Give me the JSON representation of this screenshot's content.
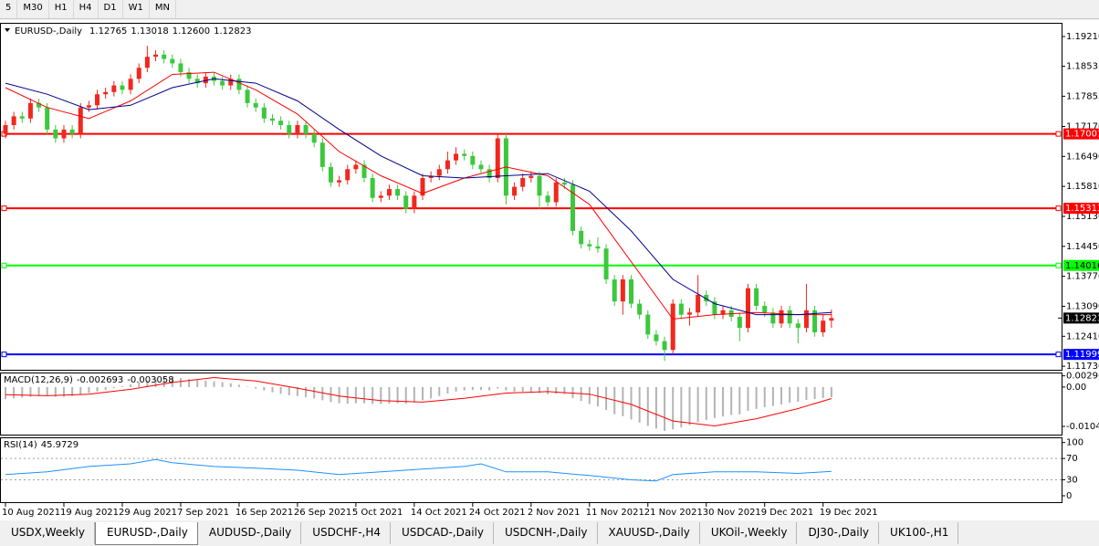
{
  "toolbar": [
    "5",
    "M30",
    "H1",
    "H4",
    "D1",
    "W1",
    "MN"
  ],
  "tabs": [
    "USDX,Weekly",
    "EURUSD-,Daily",
    "AUDUSD-,Daily",
    "USDCHF-,H4",
    "USDCAD-,Daily",
    "USDCNH-,Daily",
    "XAUUSD-,Daily",
    "UKOil-,Weekly",
    "DJ30-,Daily",
    "UK100-,H1"
  ],
  "active_tab": 1,
  "chart_data": [
    {
      "type": "candlestick",
      "symbol": "EURUSD-,Daily",
      "last_bar_labels": [
        "1.12765",
        "1.13018",
        "1.12600",
        "1.12823"
      ],
      "up_color": "#f0281e",
      "down_color": "#3cc83c",
      "ohlc": [
        [
          1.17,
          1.173,
          1.169,
          1.172
        ],
        [
          1.172,
          1.175,
          1.171,
          1.174
        ],
        [
          1.174,
          1.175,
          1.1725,
          1.1735
        ],
        [
          1.1735,
          1.178,
          1.1725,
          1.177
        ],
        [
          1.177,
          1.178,
          1.175,
          1.176
        ],
        [
          1.176,
          1.177,
          1.17,
          1.171
        ],
        [
          1.171,
          1.172,
          1.168,
          1.169
        ],
        [
          1.169,
          1.172,
          1.168,
          1.171
        ],
        [
          1.171,
          1.172,
          1.169,
          1.17
        ],
        [
          1.17,
          1.177,
          1.169,
          1.176
        ],
        [
          1.176,
          1.1775,
          1.175,
          1.1765
        ],
        [
          1.1765,
          1.18,
          1.1755,
          1.179
        ],
        [
          1.179,
          1.1805,
          1.178,
          1.1795
        ],
        [
          1.1795,
          1.182,
          1.1785,
          1.181
        ],
        [
          1.181,
          1.182,
          1.179,
          1.18
        ],
        [
          1.18,
          1.1835,
          1.179,
          1.1825
        ],
        [
          1.1825,
          1.186,
          1.1815,
          1.185
        ],
        [
          1.185,
          1.19,
          1.184,
          1.1875
        ],
        [
          1.1875,
          1.189,
          1.1865,
          1.188
        ],
        [
          1.188,
          1.189,
          1.186,
          1.187
        ],
        [
          1.187,
          1.188,
          1.185,
          1.186
        ],
        [
          1.186,
          1.187,
          1.183,
          1.184
        ],
        [
          1.184,
          1.185,
          1.1815,
          1.1825
        ],
        [
          1.1825,
          1.1835,
          1.1805,
          1.1815
        ],
        [
          1.1815,
          1.184,
          1.1805,
          1.183
        ],
        [
          1.183,
          1.184,
          1.181,
          1.182
        ],
        [
          1.182,
          1.183,
          1.18,
          1.181
        ],
        [
          1.181,
          1.1835,
          1.18,
          1.1825
        ],
        [
          1.1825,
          1.1835,
          1.179,
          1.18
        ],
        [
          1.18,
          1.181,
          1.176,
          1.177
        ],
        [
          1.177,
          1.178,
          1.175,
          1.176
        ],
        [
          1.176,
          1.177,
          1.1725,
          1.1735
        ],
        [
          1.1735,
          1.1745,
          1.172,
          1.173
        ],
        [
          1.173,
          1.174,
          1.171,
          1.172
        ],
        [
          1.172,
          1.173,
          1.169,
          1.17
        ],
        [
          1.17,
          1.173,
          1.169,
          1.172
        ],
        [
          1.172,
          1.173,
          1.169,
          1.17
        ],
        [
          1.17,
          1.171,
          1.167,
          1.168
        ],
        [
          1.168,
          1.169,
          1.1615,
          1.1625
        ],
        [
          1.1625,
          1.1635,
          1.158,
          1.159
        ],
        [
          1.159,
          1.1605,
          1.158,
          1.1595
        ],
        [
          1.1595,
          1.163,
          1.1585,
          1.162
        ],
        [
          1.162,
          1.164,
          1.161,
          1.163
        ],
        [
          1.163,
          1.164,
          1.159,
          1.16
        ],
        [
          1.16,
          1.161,
          1.1545,
          1.1555
        ],
        [
          1.1555,
          1.157,
          1.1545,
          1.156
        ],
        [
          1.156,
          1.1585,
          1.155,
          1.1575
        ],
        [
          1.1575,
          1.1585,
          1.155,
          1.156
        ],
        [
          1.156,
          1.157,
          1.152,
          1.153
        ],
        [
          1.153,
          1.157,
          1.152,
          1.156
        ],
        [
          1.156,
          1.161,
          1.155,
          1.16
        ],
        [
          1.16,
          1.1615,
          1.159,
          1.1605
        ],
        [
          1.1605,
          1.163,
          1.1595,
          1.162
        ],
        [
          1.162,
          1.166,
          1.161,
          1.164
        ],
        [
          1.164,
          1.167,
          1.163,
          1.1655
        ],
        [
          1.1655,
          1.1665,
          1.164,
          1.165
        ],
        [
          1.165,
          1.166,
          1.162,
          1.163
        ],
        [
          1.163,
          1.164,
          1.161,
          1.162
        ],
        [
          1.162,
          1.163,
          1.159,
          1.16
        ],
        [
          1.16,
          1.17,
          1.159,
          1.169
        ],
        [
          1.169,
          1.17,
          1.154,
          1.156
        ],
        [
          1.156,
          1.159,
          1.155,
          1.158
        ],
        [
          1.158,
          1.161,
          1.157,
          1.16
        ],
        [
          1.16,
          1.1615,
          1.159,
          1.1605
        ],
        [
          1.1605,
          1.1615,
          1.153,
          1.156
        ],
        [
          1.156,
          1.157,
          1.1535,
          1.1545
        ],
        [
          1.1545,
          1.16,
          1.1535,
          1.159
        ],
        [
          1.159,
          1.16,
          1.1575,
          1.1585
        ],
        [
          1.1585,
          1.1595,
          1.147,
          1.148
        ],
        [
          1.148,
          1.149,
          1.144,
          1.145
        ],
        [
          1.145,
          1.146,
          1.1435,
          1.1445
        ],
        [
          1.1445,
          1.1465,
          1.143,
          1.144
        ],
        [
          1.144,
          1.145,
          1.136,
          1.137
        ],
        [
          1.137,
          1.138,
          1.131,
          1.132
        ],
        [
          1.132,
          1.138,
          1.129,
          1.137
        ],
        [
          1.137,
          1.138,
          1.1305,
          1.1315
        ],
        [
          1.1315,
          1.1325,
          1.128,
          1.129
        ],
        [
          1.129,
          1.13,
          1.1235,
          1.1245
        ],
        [
          1.1245,
          1.1255,
          1.122,
          1.123
        ],
        [
          1.123,
          1.124,
          1.1185,
          1.121
        ],
        [
          1.121,
          1.1325,
          1.12,
          1.1315
        ],
        [
          1.1315,
          1.1325,
          1.128,
          1.129
        ],
        [
          1.129,
          1.1305,
          1.1265,
          1.1295
        ],
        [
          1.1295,
          1.138,
          1.1285,
          1.1335
        ],
        [
          1.1335,
          1.1345,
          1.131,
          1.132
        ],
        [
          1.132,
          1.133,
          1.128,
          1.129
        ],
        [
          1.129,
          1.131,
          1.128,
          1.13
        ],
        [
          1.13,
          1.131,
          1.1275,
          1.1285
        ],
        [
          1.1285,
          1.1295,
          1.123,
          1.126
        ],
        [
          1.126,
          1.136,
          1.125,
          1.135
        ],
        [
          1.135,
          1.136,
          1.13,
          1.131
        ],
        [
          1.131,
          1.132,
          1.1285,
          1.1295
        ],
        [
          1.1295,
          1.1305,
          1.126,
          1.127
        ],
        [
          1.127,
          1.131,
          1.126,
          1.13
        ],
        [
          1.13,
          1.131,
          1.126,
          1.127
        ],
        [
          1.127,
          1.128,
          1.1225,
          1.126
        ],
        [
          1.126,
          1.136,
          1.125,
          1.13
        ],
        [
          1.13,
          1.131,
          1.124,
          1.125
        ],
        [
          1.125,
          1.129,
          1.124,
          1.12765
        ],
        [
          1.12765,
          1.13018,
          1.126,
          1.12823
        ]
      ],
      "categories": [
        "10 Aug 2021",
        null,
        null,
        null,
        null,
        null,
        null,
        "19 Aug 2021",
        null,
        null,
        null,
        null,
        null,
        null,
        "29 Aug 2021",
        null,
        null,
        null,
        null,
        null,
        null,
        "7 Sep 2021",
        null,
        null,
        null,
        null,
        null,
        null,
        "16 Sep 2021",
        null,
        null,
        null,
        null,
        null,
        null,
        "26 Sep 2021",
        null,
        null,
        null,
        null,
        null,
        null,
        "5 Oct 2021",
        null,
        null,
        null,
        null,
        null,
        null,
        "14 Oct 2021",
        null,
        null,
        null,
        null,
        null,
        null,
        "24 Oct 2021",
        null,
        null,
        null,
        null,
        null,
        null,
        "2 Nov 2021",
        null,
        null,
        null,
        null,
        null,
        null,
        "11 Nov 2021",
        null,
        null,
        null,
        null,
        null,
        null,
        "21 Nov 2021",
        null,
        null,
        null,
        null,
        null,
        null,
        "30 Nov 2021",
        null,
        null,
        null,
        null,
        null,
        null,
        "9 Dec 2021",
        null,
        null,
        null,
        null,
        null,
        null,
        "19 Dec 2021",
        null
      ],
      "ylim": [
        1.1165,
        1.1952
      ],
      "yticks": [
        {
          "value": 1.1921,
          "label": "1.19210"
        },
        1.18535,
        1.17855,
        {
          "value": 1.1717,
          "label": "1.17170"
        },
        {
          "value": 1.1649,
          "label": "1.16490"
        },
        {
          "value": 1.1581,
          "label": "1.15810"
        },
        {
          "value": 1.1513,
          "label": "1.15130"
        },
        {
          "value": 1.1445,
          "label": "1.14450"
        },
        {
          "value": 1.1377,
          "label": "1.13770"
        },
        {
          "value": 1.1309,
          "label": "1.13090"
        },
        {
          "value": 1.1241,
          "label": "1.12410"
        },
        {
          "value": 1.1173,
          "label": "1.11730"
        }
      ],
      "levels": [
        {
          "value": 1.17001,
          "color": "#ff0000",
          "text_color": "#ffffff"
        },
        {
          "value": 1.15313,
          "color": "#ff0000",
          "text_color": "#ffffff"
        },
        {
          "value": 1.14016,
          "color": "#00ff00",
          "text_color": "#000000"
        },
        {
          "value": 1.11999,
          "color": "#0000ff",
          "text_color": "#ffffff"
        }
      ],
      "ma": [
        {
          "color": "#ff0000",
          "x": [
            0,
            5,
            10,
            15,
            20,
            25,
            30,
            35,
            40,
            45,
            50,
            55,
            60,
            65,
            70,
            75,
            80,
            85,
            90,
            95,
            99
          ],
          "values": [
            1.1805,
            1.176,
            1.1735,
            1.1775,
            1.1835,
            1.184,
            1.18,
            1.1745,
            1.166,
            1.1605,
            1.1565,
            1.16,
            1.1625,
            1.1605,
            1.154,
            1.141,
            1.128,
            1.129,
            1.1295,
            1.129,
            1.129
          ]
        },
        {
          "color": "#00008b",
          "x": [
            0,
            5,
            10,
            15,
            20,
            25,
            30,
            35,
            40,
            45,
            50,
            55,
            60,
            65,
            70,
            75,
            80,
            85,
            90,
            95,
            99
          ],
          "values": [
            1.1815,
            1.179,
            1.1755,
            1.1765,
            1.1805,
            1.1825,
            1.1815,
            1.1775,
            1.171,
            1.165,
            1.1605,
            1.16,
            1.1605,
            1.161,
            1.157,
            1.148,
            1.137,
            1.1315,
            1.129,
            1.129,
            1.1295
          ]
        }
      ]
    },
    {
      "type": "macd",
      "label": "MACD(12,26,9)",
      "ylim": [
        -0.0126,
        0.0036
      ],
      "yticks": [
        0.002966,
        {
          "value": 0,
          "label": "0.00"
        },
        -0.010425
      ],
      "histogram": {
        "color": "#b4b4b4",
        "values": [
          -0.0032,
          -0.003,
          -0.0028,
          -0.0026,
          -0.0024,
          -0.0024,
          -0.0026,
          -0.0026,
          -0.0024,
          -0.002,
          -0.0016,
          -0.0012,
          -0.0008,
          -0.0003,
          0.0002,
          0.0007,
          0.0012,
          0.0017,
          0.0021,
          0.0024,
          0.0025,
          0.0024,
          0.0021,
          0.0019,
          0.0017,
          0.0015,
          0.0013,
          0.001,
          0.0006,
          0.0001,
          -0.0004,
          -0.0009,
          -0.0014,
          -0.0018,
          -0.0022,
          -0.0024,
          -0.0027,
          -0.003,
          -0.0035,
          -0.004,
          -0.0043,
          -0.0044,
          -0.0043,
          -0.0043,
          -0.0045,
          -0.0045,
          -0.0044,
          -0.0043,
          -0.0044,
          -0.0041,
          -0.0035,
          -0.003,
          -0.0024,
          -0.0017,
          -0.0012,
          -0.0009,
          -0.0008,
          -0.0008,
          -0.0009,
          -0.0004,
          -0.0009,
          -0.0012,
          -0.0012,
          -0.0012,
          -0.0016,
          -0.0019,
          -0.0018,
          -0.0019,
          -0.0029,
          -0.0037,
          -0.0045,
          -0.0051,
          -0.0061,
          -0.0072,
          -0.0077,
          -0.0086,
          -0.0094,
          -0.0103,
          -0.011,
          -0.0116,
          -0.0112,
          -0.0107,
          -0.0101,
          -0.0093,
          -0.0087,
          -0.0082,
          -0.0078,
          -0.0074,
          -0.0072,
          -0.0063,
          -0.0058,
          -0.0053,
          -0.005,
          -0.0046,
          -0.0042,
          -0.0039,
          -0.0034,
          -0.0032,
          -0.0029,
          -0.002693
        ]
      },
      "signal": {
        "color": "#ff0000",
        "x": [
          0,
          5,
          10,
          15,
          20,
          25,
          30,
          35,
          40,
          45,
          50,
          55,
          60,
          65,
          70,
          75,
          80,
          85,
          90,
          95,
          99
        ],
        "values": [
          -0.002,
          -0.0023,
          -0.0019,
          -0.0006,
          0.0012,
          0.0025,
          0.0016,
          -0.0003,
          -0.0024,
          -0.0036,
          -0.004,
          -0.003,
          -0.0016,
          -0.0012,
          -0.0019,
          -0.0046,
          -0.009,
          -0.0103,
          -0.0084,
          -0.0057,
          -0.003058
        ]
      }
    },
    {
      "type": "line",
      "label": "RSI(14)",
      "color": "#1e90ff",
      "ylim": [
        -12,
        108
      ],
      "yticks": [
        100,
        70,
        30,
        0
      ],
      "levels": [
        70,
        30
      ],
      "x": [
        0,
        5,
        10,
        15,
        18,
        20,
        25,
        30,
        35,
        40,
        45,
        50,
        55,
        57,
        60,
        65,
        70,
        75,
        78,
        80,
        85,
        90,
        95,
        99
      ],
      "values": [
        40,
        45,
        55,
        60,
        68,
        62,
        55,
        52,
        48,
        40,
        45,
        50,
        55,
        60,
        45,
        45,
        38,
        30,
        28,
        40,
        45,
        45,
        42,
        45.9729
      ]
    }
  ]
}
